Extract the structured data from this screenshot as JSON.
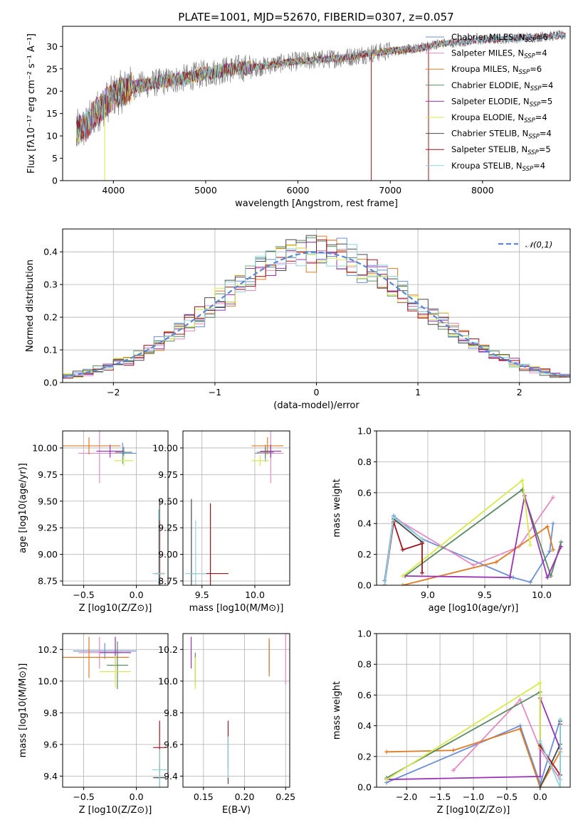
{
  "figure_title": "PLATE=1001, MJD=52670, FIBERID=0307, z=0.057",
  "colors": {
    "Chabrier MILES": "#6a8fd8",
    "Salpeter MILES": "#e58bc3",
    "Kroupa MILES": "#e07b24",
    "Chabrier ELODIE": "#5a8a62",
    "Salpeter ELODIE": "#9a32b4",
    "Kroupa ELODIE": "#d6ea4a",
    "Chabrier STELIB": "#4a4a4a",
    "Salpeter STELIB": "#a0141e",
    "Kroupa STELIB": "#8ed6da"
  },
  "chart_data": [
    {
      "id": "spectrum",
      "type": "line",
      "title": "PLATE=1001, MJD=52670, FIBERID=0307, z=0.057",
      "xlabel": "wavelength [Angstrom, rest frame]",
      "ylabel": "Flux [fλ10⁻¹⁷ erg cm⁻² s⁻¹ A⁻¹]",
      "xlim": [
        3450,
        8950
      ],
      "ylim": [
        0,
        34.5
      ],
      "xticks": [
        "4000",
        "5000",
        "6000",
        "7000",
        "8000"
      ],
      "yticks": [
        "0",
        "5",
        "10",
        "15",
        "20",
        "25",
        "30"
      ],
      "grid": false,
      "legend_position": "upper-right",
      "observed_data_color": "#808080",
      "continuum_anchors": {
        "x": [
          3600,
          3700,
          3800,
          3900,
          4000,
          4200,
          4500,
          4800,
          5000,
          5300,
          5600,
          5900,
          6200,
          6500,
          6800,
          7000,
          7300,
          7500,
          8000,
          8500,
          8900
        ],
        "y": [
          11,
          12,
          15,
          17,
          19,
          21,
          22,
          23,
          24,
          25,
          25.5,
          26.5,
          27,
          27.5,
          28.5,
          29,
          29.5,
          30.5,
          31.5,
          32,
          32.5
        ]
      },
      "series": [
        {
          "name": "Chabrier MILES",
          "n_ssp": "6"
        },
        {
          "name": "Salpeter MILES",
          "n_ssp": "4"
        },
        {
          "name": "Kroupa MILES",
          "n_ssp": "6"
        },
        {
          "name": "Chabrier ELODIE",
          "n_ssp": "4"
        },
        {
          "name": "Salpeter ELODIE",
          "n_ssp": "5"
        },
        {
          "name": "Kroupa ELODIE",
          "n_ssp": "4"
        },
        {
          "name": "Chabrier STELIB",
          "n_ssp": "4"
        },
        {
          "name": "Salpeter STELIB",
          "n_ssp": "5"
        },
        {
          "name": "Kroupa STELIB",
          "n_ssp": "4"
        }
      ]
    },
    {
      "id": "residuals",
      "type": "line",
      "xlabel": "(data-model)/error",
      "ylabel": "Normed distribution",
      "xlim": [
        -2.5,
        2.5
      ],
      "ylim": [
        0,
        0.47
      ],
      "xticks": [
        -2,
        -1,
        0,
        1,
        2
      ],
      "yticks": [
        "0.0",
        "0.1",
        "0.2",
        "0.3",
        "0.4"
      ],
      "grid": true,
      "legend": [
        {
          "label": "𝒩(0,1)",
          "style": "dashed",
          "color": "#5b87d6"
        }
      ],
      "legend_position": "upper-right",
      "histogram_bin_width": 0.1
    },
    {
      "id": "age-vs-Z",
      "type": "scatter",
      "xlabel": "Z [log10(Z/Z⊙)]",
      "ylabel": "age  [log10(age/yr)]",
      "xlim": [
        -0.7,
        0.3
      ],
      "ylim": [
        8.71,
        10.16
      ],
      "xticks": [
        "-0.5",
        "0.0"
      ],
      "yticks": [
        "8.75",
        "9.00",
        "9.25",
        "9.50",
        "9.75",
        "10.00"
      ],
      "grid": true,
      "points": [
        {
          "series": "Chabrier MILES",
          "x": -0.13,
          "y": 9.95,
          "xerr": 0.13,
          "yerr": 0.1
        },
        {
          "series": "Salpeter MILES",
          "x": -0.35,
          "y": 9.95,
          "xerr": 0.2,
          "yerr": 0.28
        },
        {
          "series": "Kroupa MILES",
          "x": -0.45,
          "y": 10.02,
          "xerr": 0.3,
          "yerr": 0.08
        },
        {
          "series": "Chabrier ELODIE",
          "x": -0.12,
          "y": 9.96,
          "xerr": 0.08,
          "yerr": 0.05
        },
        {
          "series": "Salpeter ELODIE",
          "x": -0.25,
          "y": 9.97,
          "xerr": 0.13,
          "yerr": 0.06
        },
        {
          "series": "Kroupa ELODIE",
          "x": -0.12,
          "y": 9.88,
          "xerr": 0.09,
          "yerr": 0.05
        },
        {
          "series": "Chabrier STELIB",
          "x": 0.22,
          "y": 8.82,
          "xerr": 0.05,
          "yerr": 0.7
        },
        {
          "series": "Salpeter STELIB",
          "x": 0.22,
          "y": 8.82,
          "xerr": 0.05,
          "yerr": 0.5
        },
        {
          "series": "Kroupa STELIB",
          "x": 0.21,
          "y": 8.82,
          "xerr": 0.06,
          "yerr": 0.6
        }
      ]
    },
    {
      "id": "age-vs-mass",
      "type": "scatter",
      "xlabel": "mass [log10(M/M⊙)]",
      "xlim": [
        9.32,
        10.33
      ],
      "ylim": [
        8.71,
        10.16
      ],
      "xticks": [
        "9.5",
        "10.0"
      ],
      "yticks": [
        "8.75",
        "9.00",
        "9.25",
        "9.50",
        "9.75",
        "10.00"
      ],
      "grid": true,
      "points": [
        {
          "series": "Chabrier MILES",
          "x": 10.1,
          "y": 9.95,
          "xerr": 0.1,
          "yerr": 0.08
        },
        {
          "series": "Salpeter MILES",
          "x": 10.15,
          "y": 9.95,
          "xerr": 0.12,
          "yerr": 0.28
        },
        {
          "series": "Kroupa MILES",
          "x": 10.12,
          "y": 10.02,
          "xerr": 0.15,
          "yerr": 0.08
        },
        {
          "series": "Chabrier ELODIE",
          "x": 10.1,
          "y": 9.96,
          "xerr": 0.08,
          "yerr": 0.05
        },
        {
          "series": "Salpeter ELODIE",
          "x": 10.15,
          "y": 9.97,
          "xerr": 0.1,
          "yerr": 0.06
        },
        {
          "series": "Kroupa ELODIE",
          "x": 10.05,
          "y": 9.88,
          "xerr": 0.08,
          "yerr": 0.05
        },
        {
          "series": "Chabrier STELIB",
          "x": 9.4,
          "y": 8.82,
          "xerr": 0.02,
          "yerr": 0.7
        },
        {
          "series": "Salpeter STELIB",
          "x": 9.58,
          "y": 8.82,
          "xerr": 0.17,
          "yerr": 0.66
        },
        {
          "series": "Kroupa STELIB",
          "x": 9.44,
          "y": 8.82,
          "xerr": 0.1,
          "yerr": 0.5
        }
      ]
    },
    {
      "id": "weight-vs-age",
      "type": "line",
      "xlabel": "age  [log10(age/yr)]",
      "ylabel": "mass weight",
      "xlim": [
        8.55,
        10.25
      ],
      "ylim": [
        0,
        1
      ],
      "xticks": [
        "9.0",
        "9.5",
        "10.0"
      ],
      "yticks": [
        "0.0",
        "0.2",
        "0.4",
        "0.6",
        "0.8",
        "1.0"
      ],
      "grid": true,
      "series": [
        {
          "name": "Chabrier MILES",
          "x": [
            8.62,
            8.7,
            8.95,
            9.75,
            9.9,
            10.07,
            10.1
          ],
          "y": [
            0.03,
            0.45,
            0.3,
            0.05,
            0.02,
            0.22,
            0.4
          ]
        },
        {
          "name": "Salpeter MILES",
          "x": [
            8.62,
            8.7,
            9.4,
            9.8,
            10.1
          ],
          "y": [
            0.0,
            0.44,
            0.13,
            0.25,
            0.57
          ]
        },
        {
          "name": "Kroupa MILES",
          "x": [
            8.78,
            9.6,
            10.05,
            10.1
          ],
          "y": [
            0.0,
            0.15,
            0.38,
            0.23
          ]
        },
        {
          "name": "Chabrier ELODIE",
          "x": [
            8.8,
            9.83,
            10.08,
            10.17
          ],
          "y": [
            0.06,
            0.62,
            0.06,
            0.28
          ]
        },
        {
          "name": "Salpeter ELODIE",
          "x": [
            8.8,
            9.72,
            9.85,
            10.05,
            10.17
          ],
          "y": [
            0.06,
            0.05,
            0.58,
            0.05,
            0.25
          ]
        },
        {
          "name": "Kroupa ELODIE",
          "x": [
            8.78,
            9.83,
            9.9
          ],
          "y": [
            0.06,
            0.68,
            0.26
          ]
        },
        {
          "name": "Chabrier STELIB",
          "x": [
            8.62,
            8.7,
            8.95
          ],
          "y": [
            0.0,
            0.43,
            0.28
          ]
        },
        {
          "name": "Salpeter STELIB",
          "x": [
            8.62,
            8.7,
            8.78,
            8.95,
            8.95
          ],
          "y": [
            0.0,
            0.41,
            0.23,
            0.27,
            0.08
          ]
        },
        {
          "name": "Kroupa STELIB",
          "x": [
            8.62,
            8.7,
            8.95
          ],
          "y": [
            0.0,
            0.44,
            0.3
          ]
        }
      ]
    },
    {
      "id": "mass-vs-Z",
      "type": "scatter",
      "xlabel": "Z [log10(Z/Z⊙)]",
      "ylabel": "mass [log10(M/M⊙)]",
      "xlim": [
        -0.7,
        0.3
      ],
      "ylim": [
        9.33,
        10.3
      ],
      "xticks": [
        "-0.5",
        "0.0"
      ],
      "yticks": [
        "9.4",
        "9.6",
        "9.8",
        "10.0",
        "10.2"
      ],
      "grid": true,
      "points": [
        {
          "series": "Chabrier MILES",
          "x": -0.3,
          "y": 10.19,
          "xerr": 0.3,
          "yerr": 0.05
        },
        {
          "series": "Salpeter MILES",
          "x": -0.35,
          "y": 10.18,
          "xerr": 0.2,
          "yerr": 0.1
        },
        {
          "series": "Kroupa MILES",
          "x": -0.45,
          "y": 10.15,
          "xerr": 0.38,
          "yerr": 0.13
        },
        {
          "series": "Chabrier ELODIE",
          "x": -0.18,
          "y": 10.1,
          "xerr": 0.1,
          "yerr": 0.15
        },
        {
          "series": "Salpeter ELODIE",
          "x": -0.2,
          "y": 10.18,
          "xerr": 0.15,
          "yerr": 0.1
        },
        {
          "series": "Kroupa ELODIE",
          "x": -0.2,
          "y": 10.06,
          "xerr": 0.15,
          "yerr": 0.1
        },
        {
          "series": "Chabrier STELIB",
          "x": 0.22,
          "y": 9.39,
          "xerr": 0.06,
          "yerr": 0.08
        },
        {
          "series": "Salpeter STELIB",
          "x": 0.22,
          "y": 9.58,
          "xerr": 0.06,
          "yerr": 0.17
        },
        {
          "series": "Kroupa STELIB",
          "x": 0.22,
          "y": 9.44,
          "xerr": 0.07,
          "yerr": 0.13
        }
      ]
    },
    {
      "id": "mass-vs-ebv",
      "type": "scatter",
      "xlabel": "E(B-V)",
      "xlim": [
        0.125,
        0.255
      ],
      "ylim": [
        9.33,
        10.3
      ],
      "xticks": [
        "0.15",
        "0.20",
        "0.25"
      ],
      "yticks": [
        "9.4",
        "9.6",
        "9.8",
        "10.0",
        "10.2"
      ],
      "grid": true,
      "points": [
        {
          "series": "Chabrier MILES",
          "x": 0.23,
          "y": 10.15,
          "yerr": 0.1
        },
        {
          "series": "Salpeter MILES",
          "x": 0.25,
          "y": 10.15,
          "yerr": 0.17
        },
        {
          "series": "Kroupa MILES",
          "x": 0.23,
          "y": 10.15,
          "yerr": 0.12
        },
        {
          "series": "Chabrier ELODIE",
          "x": 0.14,
          "y": 10.08,
          "yerr": 0.1
        },
        {
          "series": "Salpeter ELODIE",
          "x": 0.135,
          "y": 10.18,
          "yerr": 0.1
        },
        {
          "series": "Kroupa ELODIE",
          "x": 0.14,
          "y": 10.05,
          "yerr": 0.1
        },
        {
          "series": "Chabrier STELIB",
          "x": 0.18,
          "y": 9.5,
          "yerr": 0.15
        },
        {
          "series": "Salpeter STELIB",
          "x": 0.18,
          "y": 9.6,
          "yerr": 0.15
        },
        {
          "series": "Kroupa STELIB",
          "x": 0.18,
          "y": 9.52,
          "yerr": 0.13
        }
      ]
    },
    {
      "id": "weight-vs-Z",
      "type": "line",
      "xlabel": "Z [log10(Z/Z⊙)]",
      "ylabel": "mass weight",
      "xlim": [
        -2.45,
        0.45
      ],
      "ylim": [
        0,
        1
      ],
      "xticks": [
        "−2.0",
        "−1.5",
        "−1.0",
        "−0.5",
        "0.0"
      ],
      "yticks": [
        "0.0",
        "0.2",
        "0.4",
        "0.6",
        "0.8",
        "1.0"
      ],
      "grid": true,
      "series": [
        {
          "name": "Chabrier MILES",
          "x": [
            -2.3,
            -0.3,
            0.0,
            0.3
          ],
          "y": [
            0.03,
            0.4,
            0.02,
            0.44
          ]
        },
        {
          "name": "Salpeter MILES",
          "x": [
            -1.3,
            -0.3,
            0.0,
            0.3
          ],
          "y": [
            0.11,
            0.57,
            0.25,
            0.05
          ]
        },
        {
          "name": "Kroupa MILES",
          "x": [
            -2.3,
            -1.3,
            -0.3,
            0.0,
            0.3
          ],
          "y": [
            0.23,
            0.24,
            0.38,
            0.0,
            0.23
          ]
        },
        {
          "name": "Chabrier ELODIE",
          "x": [
            -2.3,
            0.0,
            0.0
          ],
          "y": [
            0.06,
            0.62,
            0.28
          ]
        },
        {
          "name": "Salpeter ELODIE",
          "x": [
            -2.3,
            0.0,
            0.0,
            0.3
          ],
          "y": [
            0.05,
            0.07,
            0.58,
            0.25
          ]
        },
        {
          "name": "Kroupa ELODIE",
          "x": [
            -2.3,
            0.0,
            0.0
          ],
          "y": [
            0.05,
            0.68,
            0.26
          ]
        },
        {
          "name": "Chabrier STELIB",
          "x": [
            0.0,
            0.3,
            0.3
          ],
          "y": [
            0.0,
            0.28,
            0.43
          ]
        },
        {
          "name": "Salpeter STELIB",
          "x": [
            0.0,
            0.3,
            0.3
          ],
          "y": [
            0.27,
            0.08,
            0.41
          ]
        },
        {
          "name": "Kroupa STELIB",
          "x": [
            0.0,
            0.3,
            0.3
          ],
          "y": [
            0.3,
            0.0,
            0.44
          ]
        }
      ]
    }
  ]
}
